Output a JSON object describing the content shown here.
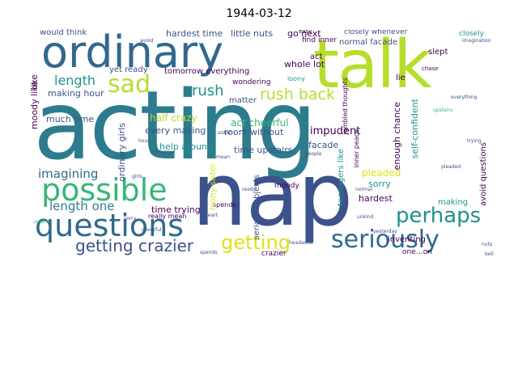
{
  "figure": {
    "title": "1944-03-12"
  },
  "words": {
    "acting": "acting",
    "nap": "nap",
    "talk": "talk",
    "ordinary": "ordinary",
    "questions": "questions",
    "possible": "possible",
    "seriously": "seriously",
    "getting_crazier": "getting crazier",
    "getting": "getting",
    "perhaps": "perhaps",
    "sad": "sad",
    "rush_back": "rush back",
    "rush": "rush",
    "length": "length",
    "length_one": "length one",
    "imagining": "imagining",
    "moody_like": "moody like",
    "ordinary_girls": "ordinary girls",
    "help_around": "help around",
    "act_cheerful": "act cheerful",
    "room_without": "room without",
    "time_upstairs": "time upstairs",
    "impudent": "impudent",
    "facade": "facade",
    "enough_chance": "enough chance",
    "self_confident": "self-confident",
    "avoid_questions": "avoid questions",
    "serious_subjects": "serious subjects",
    "teenagers_like": "teenagers like",
    "pleaded": "pleaded",
    "sorry": "sorry",
    "hardest": "hardest",
    "making": "making",
    "whole_lot": "whole lot",
    "matter": "matter",
    "half_crazy": "half crazy",
    "every_making": "every making",
    "time_trying": "time trying",
    "much_time": "much time",
    "making_hour": "making hour",
    "tomorrow_everything": "tomorrow everything",
    "yet_ready": "yet ready",
    "hardest_time": "hardest time",
    "little_nuts": "little nuts",
    "would_think": "would think",
    "normal_facade": "normal facade",
    "go_next": "go next",
    "lie": "lie",
    "slept": "slept",
    "wondering": "wondering",
    "loony_sister": "loony sister",
    "act": "act",
    "closely": "closely",
    "closely_whenever": "closely whenever",
    "find_inner": "find inner",
    "inventing": "inventing",
    "spends": "spends",
    "one_on": "one…on",
    "moody": "moody",
    "crazier": "crazier",
    "like": "like",
    "really_mean": "really mean",
    "easy": "easy",
    "inner_peace": "inner peace",
    "jumbled_thoughts": "jumbled thoughts",
    "unkind": "unkind",
    "chase": "chase",
    "loony": "loony",
    "cheerful": "cheerful",
    "headache": "headache",
    "heart": "heart",
    "normal": "normal",
    "people": "people",
    "upstairs": "upstairs",
    "girls": "girls",
    "mean": "mean",
    "hour": "hour",
    "everything": "everything",
    "ready": "ready",
    "avoid": "avoid",
    "trying": "trying",
    "imagination": "imagination",
    "sister": "sister",
    "pleaded_small": "pleaded",
    "sorry_small": "sorry",
    "yesterday": "yesterday",
    "tomorrow": "tomorrow",
    "unkind_small": "unkind",
    "nuts": "nuts",
    "spends_small": "spends",
    "bell": "bell"
  },
  "palette": {
    "dark_purple": "#440154",
    "indigo": "#3b528b",
    "steel_blue": "#31688e",
    "teal": "#21918c",
    "sea_green": "#35b779",
    "light_green": "#7ad151",
    "yellow_green": "#b5de2b",
    "yellow": "#dde318"
  }
}
